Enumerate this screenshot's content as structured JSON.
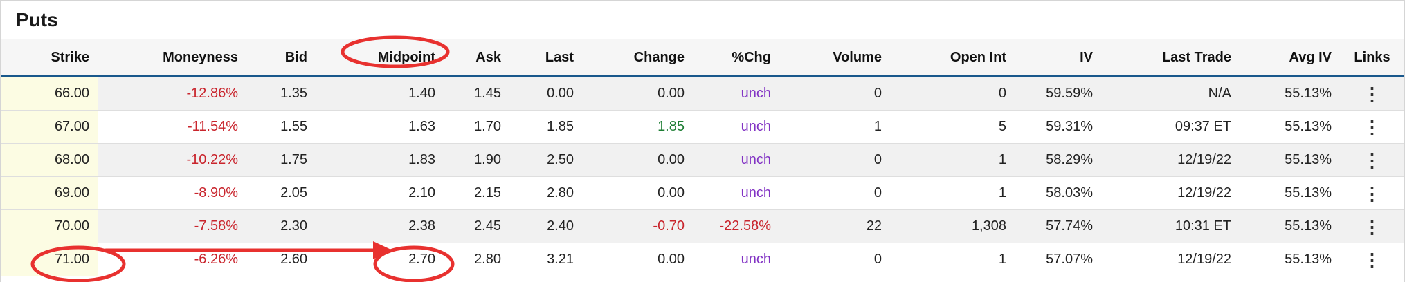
{
  "panel": {
    "title": "Puts"
  },
  "colors": {
    "negative": "#c9252d",
    "positive": "#1e7e34",
    "unchanged": "#8233c4",
    "header_line": "#19588c",
    "strike_bg": "#fcfce3",
    "annotation": "#e8312f"
  },
  "table": {
    "columns": [
      {
        "key": "strike",
        "label": "Strike",
        "align": "right"
      },
      {
        "key": "moneyness",
        "label": "Moneyness",
        "align": "right"
      },
      {
        "key": "bid",
        "label": "Bid",
        "align": "right"
      },
      {
        "key": "midpoint",
        "label": "Midpoint",
        "align": "right"
      },
      {
        "key": "ask",
        "label": "Ask",
        "align": "right"
      },
      {
        "key": "last",
        "label": "Last",
        "align": "right"
      },
      {
        "key": "change",
        "label": "Change",
        "align": "right"
      },
      {
        "key": "pctchg",
        "label": "%Chg",
        "align": "right"
      },
      {
        "key": "volume",
        "label": "Volume",
        "align": "right"
      },
      {
        "key": "openint",
        "label": "Open Int",
        "align": "right"
      },
      {
        "key": "iv",
        "label": "IV",
        "align": "right"
      },
      {
        "key": "lasttrade",
        "label": "Last Trade",
        "align": "right"
      },
      {
        "key": "avgiv",
        "label": "Avg IV",
        "align": "right"
      },
      {
        "key": "links",
        "label": "Links",
        "align": "center",
        "type": "menu"
      }
    ],
    "links_icon": {
      "name": "kebab-vertical-icon",
      "glyph": "⋮"
    },
    "rows": [
      {
        "cells": {
          "strike": "66.00",
          "moneyness": "-12.86%",
          "bid": "1.35",
          "midpoint": "1.40",
          "ask": "1.45",
          "last": "0.00",
          "change": "0.00",
          "pctchg": "unch",
          "volume": "0",
          "openint": "0",
          "iv": "59.59%",
          "lasttrade": "N/A",
          "avgiv": "55.13%"
        },
        "colors": {
          "moneyness": "negative",
          "pctchg": "unchanged"
        }
      },
      {
        "cells": {
          "strike": "67.00",
          "moneyness": "-11.54%",
          "bid": "1.55",
          "midpoint": "1.63",
          "ask": "1.70",
          "last": "1.85",
          "change": "1.85",
          "pctchg": "unch",
          "volume": "1",
          "openint": "5",
          "iv": "59.31%",
          "lasttrade": "09:37 ET",
          "avgiv": "55.13%"
        },
        "colors": {
          "moneyness": "negative",
          "change": "positive",
          "pctchg": "unchanged"
        }
      },
      {
        "cells": {
          "strike": "68.00",
          "moneyness": "-10.22%",
          "bid": "1.75",
          "midpoint": "1.83",
          "ask": "1.90",
          "last": "2.50",
          "change": "0.00",
          "pctchg": "unch",
          "volume": "0",
          "openint": "1",
          "iv": "58.29%",
          "lasttrade": "12/19/22",
          "avgiv": "55.13%"
        },
        "colors": {
          "moneyness": "negative",
          "pctchg": "unchanged"
        }
      },
      {
        "cells": {
          "strike": "69.00",
          "moneyness": "-8.90%",
          "bid": "2.05",
          "midpoint": "2.10",
          "ask": "2.15",
          "last": "2.80",
          "change": "0.00",
          "pctchg": "unch",
          "volume": "0",
          "openint": "1",
          "iv": "58.03%",
          "lasttrade": "12/19/22",
          "avgiv": "55.13%"
        },
        "colors": {
          "moneyness": "negative",
          "pctchg": "unchanged"
        }
      },
      {
        "cells": {
          "strike": "70.00",
          "moneyness": "-7.58%",
          "bid": "2.30",
          "midpoint": "2.38",
          "ask": "2.45",
          "last": "2.40",
          "change": "-0.70",
          "pctchg": "-22.58%",
          "volume": "22",
          "openint": "1,308",
          "iv": "57.74%",
          "lasttrade": "10:31 ET",
          "avgiv": "55.13%"
        },
        "colors": {
          "moneyness": "negative",
          "change": "negative",
          "pctchg": "negative"
        }
      },
      {
        "cells": {
          "strike": "71.00",
          "moneyness": "-6.26%",
          "bid": "2.60",
          "midpoint": "2.70",
          "ask": "2.80",
          "last": "3.21",
          "change": "0.00",
          "pctchg": "unch",
          "volume": "0",
          "openint": "1",
          "iv": "57.07%",
          "lasttrade": "12/19/22",
          "avgiv": "55.13%"
        },
        "colors": {
          "moneyness": "negative",
          "pctchg": "unchanged"
        }
      }
    ]
  },
  "annotations": {
    "items": [
      {
        "type": "ellipse",
        "target": "midpoint-column-header"
      },
      {
        "type": "ellipse",
        "target": "strike-71.00-cell"
      },
      {
        "type": "ellipse",
        "target": "midpoint-2.70-cell"
      },
      {
        "type": "arrow",
        "from": "strike-71.00-cell",
        "to": "midpoint-2.70-cell"
      }
    ]
  }
}
